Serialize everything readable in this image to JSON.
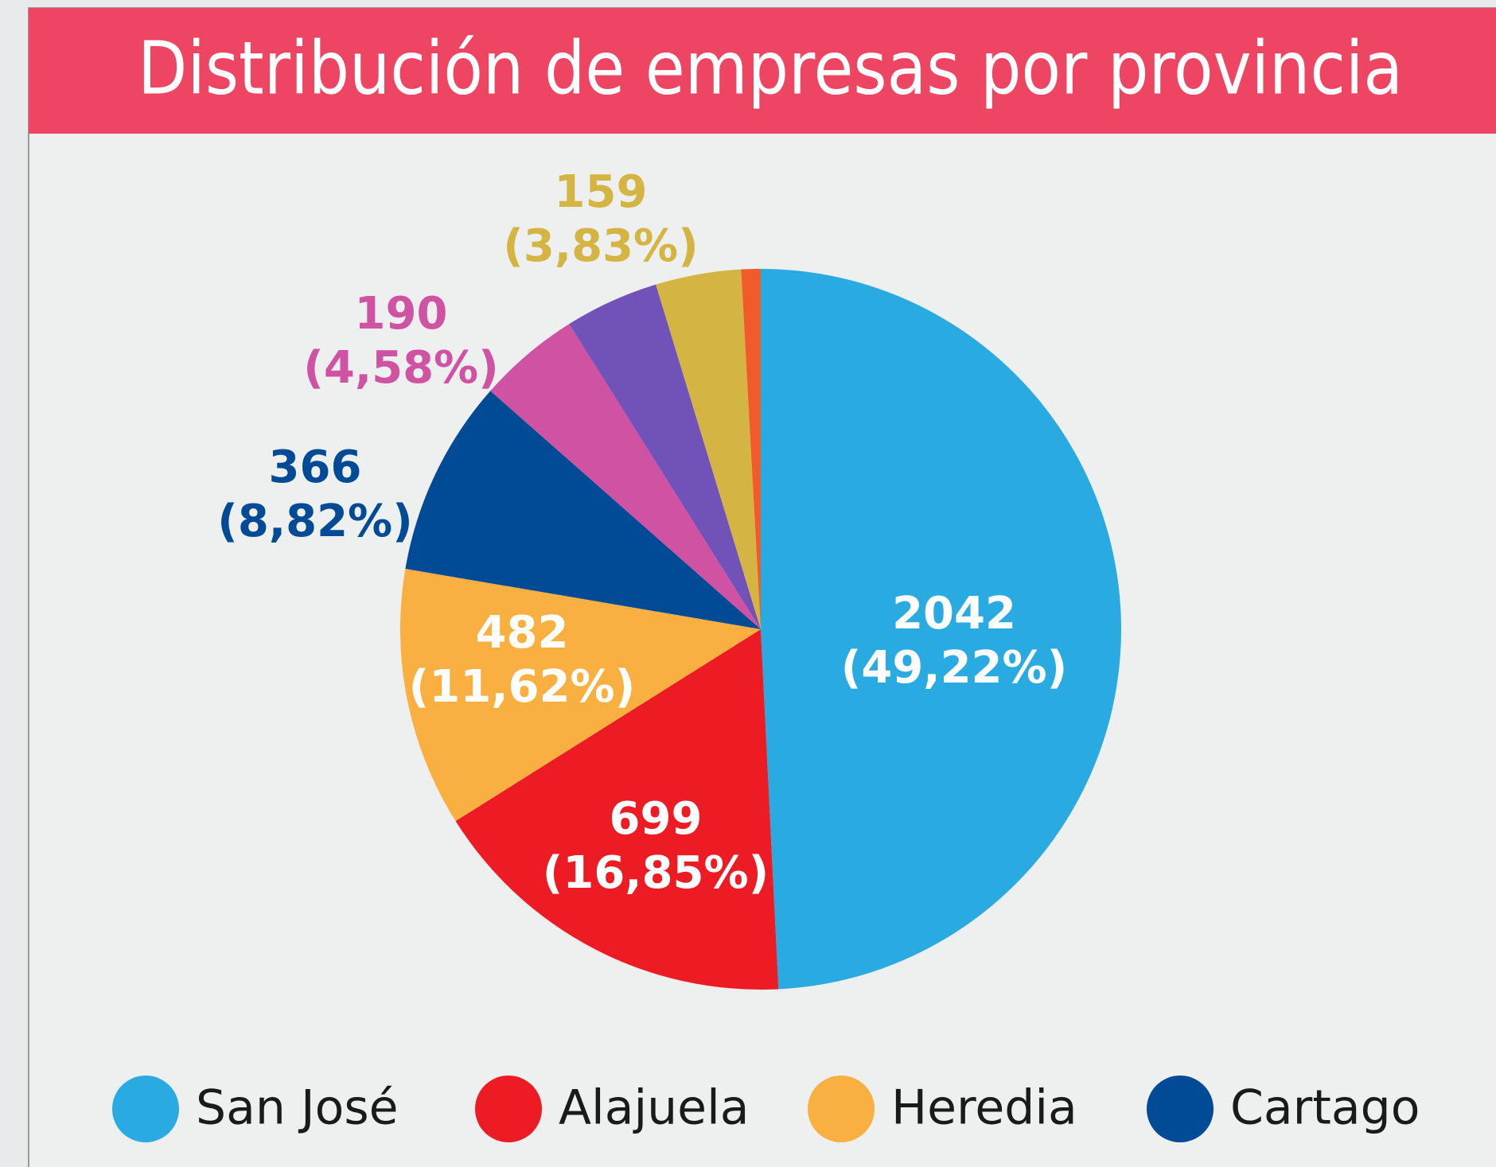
{
  "chart_data": {
    "type": "pie",
    "title": "Distribución de empresas por provincia",
    "categories": [
      "San José",
      "Alajuela",
      "Heredia",
      "Cartago",
      null,
      null,
      null,
      null
    ],
    "values": [
      2042,
      699,
      482,
      366,
      190,
      175,
      159,
      36
    ],
    "value_labels": [
      "2042\n(49,22%)",
      "699\n(16,85%)",
      "482\n(11,62%)",
      "366\n(8,82%)",
      "190\n(4,58%)",
      null,
      "159\n(3,83%)",
      null
    ],
    "colors": [
      "#29abe2",
      "#ed1c24",
      "#f9b040",
      "#004a96",
      "#cf52a3",
      "#7052b8",
      "#d4b543",
      "#f15a29"
    ],
    "legend": "bottom"
  }
}
